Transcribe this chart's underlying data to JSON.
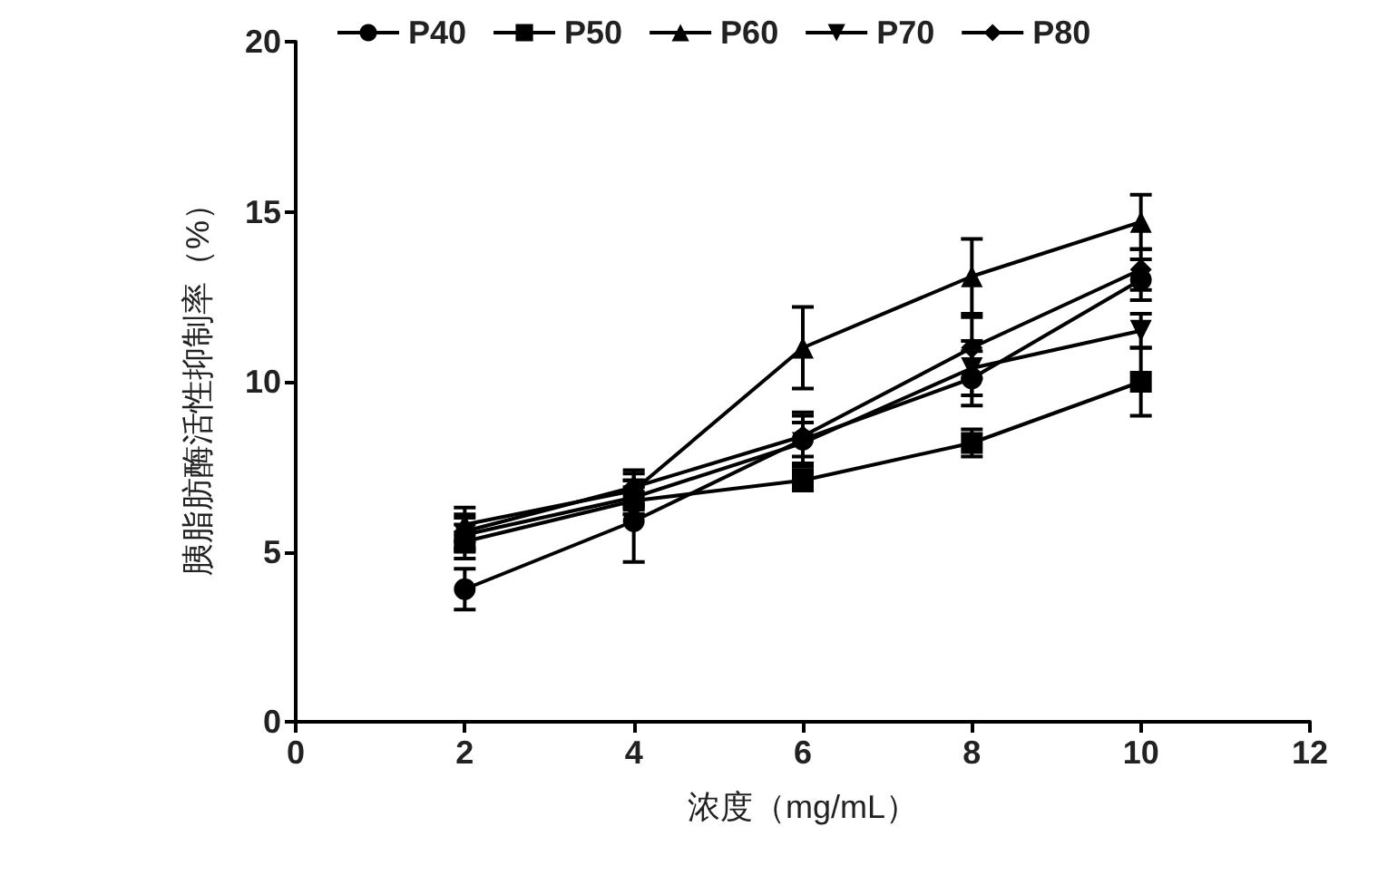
{
  "chart_data": {
    "type": "line",
    "xlabel": "浓度（mg/mL）",
    "ylabel": "胰脂肪酶活性抑制率（%）",
    "x": [
      2,
      4,
      6,
      8,
      10
    ],
    "xlim": [
      0,
      12
    ],
    "xticks": [
      0,
      2,
      4,
      6,
      8,
      10,
      12
    ],
    "ylim": [
      0,
      20
    ],
    "yticks": [
      0,
      5,
      10,
      15,
      20
    ],
    "grid": false,
    "legend": "top",
    "line_style": "solid",
    "series": [
      {
        "name": "P40",
        "color": "#000000",
        "marker": "circle",
        "values": [
          3.9,
          5.9,
          8.3,
          10.1,
          13.0
        ],
        "errors": [
          0.6,
          1.2,
          0.8,
          0.8,
          0.6
        ]
      },
      {
        "name": "P50",
        "color": "#000000",
        "marker": "square",
        "values": [
          5.3,
          6.5,
          7.1,
          8.2,
          10.0
        ],
        "errors": [
          0.5,
          0.4,
          0.3,
          0.4,
          1.0
        ]
      },
      {
        "name": "P60",
        "color": "#000000",
        "marker": "triangle",
        "values": [
          5.8,
          6.8,
          11.0,
          13.1,
          14.7
        ],
        "errors": [
          0.5,
          0.5,
          1.2,
          1.1,
          0.8
        ]
      },
      {
        "name": "P70",
        "color": "#000000",
        "marker": "triangle-down",
        "values": [
          5.5,
          6.6,
          8.2,
          10.4,
          11.5
        ],
        "errors": [
          0.5,
          0.5,
          0.6,
          0.8,
          0.5
        ]
      },
      {
        "name": "P80",
        "color": "#000000",
        "marker": "diamond",
        "values": [
          5.6,
          6.9,
          8.4,
          11.0,
          13.3
        ],
        "errors": [
          0.5,
          0.5,
          0.6,
          0.9,
          0.6
        ]
      }
    ]
  }
}
